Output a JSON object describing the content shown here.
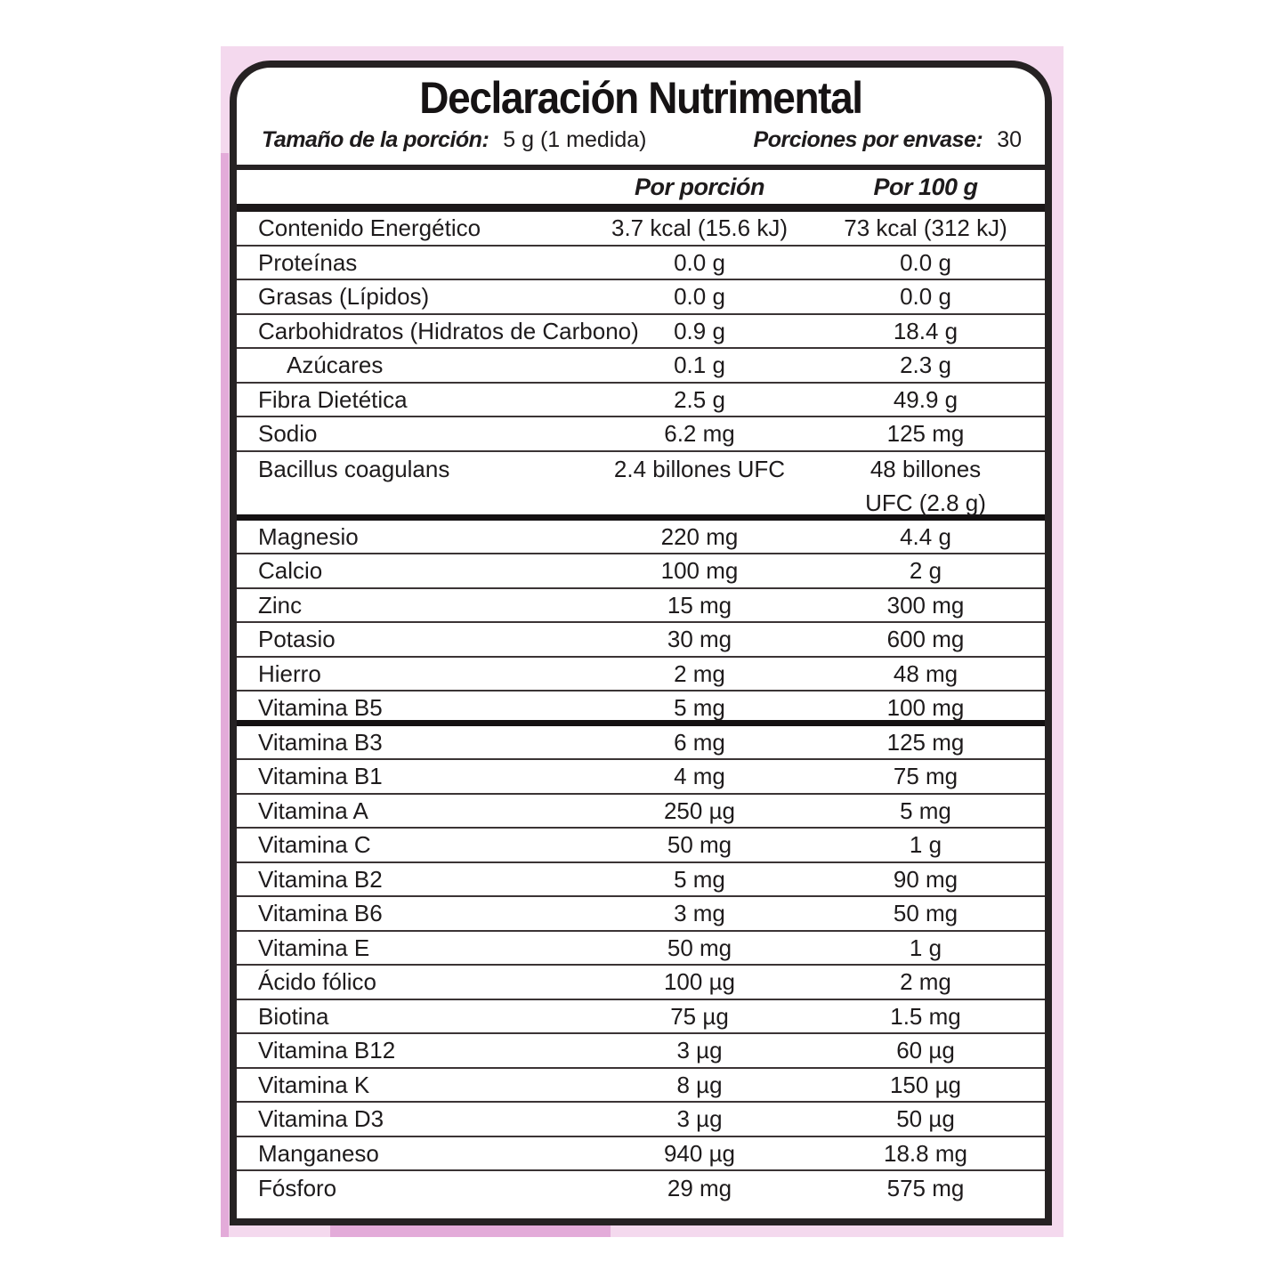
{
  "title": "Declaración Nutrimental",
  "serving": {
    "size_label": "Tamaño de la porción:",
    "size_value": "5 g (1 medida)",
    "per_container_label": "Porciones por envase:",
    "per_container_value": "30"
  },
  "columns": {
    "per_serving": "Por porción",
    "per_100g": "Por 100 g"
  },
  "colors": {
    "frame_pink_light": "#f4d9ee",
    "frame_pink_dark": "#e3abd9",
    "border_black": "#262223",
    "text": "#1e1b1c"
  },
  "table": {
    "rows": [
      {
        "label": "Contenido Energético",
        "per_serving": "3.7 kcal (15.6 kJ)",
        "per_100g": "73 kcal (312 kJ)"
      },
      {
        "label": "Proteínas",
        "per_serving": "0.0 g",
        "per_100g": "0.0 g"
      },
      {
        "label": "Grasas (Lípidos)",
        "per_serving": "0.0 g",
        "per_100g": "0.0 g"
      },
      {
        "label": "Carbohidratos (Hidratos de Carbono)",
        "per_serving": "0.9 g",
        "per_100g": "18.4 g"
      },
      {
        "label": "Azúcares",
        "indent": true,
        "per_serving": "0.1 g",
        "per_100g": "2.3 g"
      },
      {
        "label": "Fibra Dietética",
        "per_serving": "2.5 g",
        "per_100g": "49.9 g"
      },
      {
        "label": "Sodio",
        "per_serving": "6.2 mg",
        "per_100g": "125 mg"
      },
      {
        "label": "Bacillus coagulans",
        "per_serving": "2.4 billones UFC",
        "per_100g": [
          "48 billones",
          "UFC (2.8 g)"
        ],
        "tall": true,
        "thick_after": true
      },
      {
        "label": "Magnesio",
        "per_serving": "220 mg",
        "per_100g": "4.4 g"
      },
      {
        "label": "Calcio",
        "per_serving": "100 mg",
        "per_100g": "2 g"
      },
      {
        "label": "Zinc",
        "per_serving": "15 mg",
        "per_100g": "300 mg"
      },
      {
        "label": "Potasio",
        "per_serving": "30 mg",
        "per_100g": "600 mg"
      },
      {
        "label": "Hierro",
        "per_serving": "2 mg",
        "per_100g": "48 mg"
      },
      {
        "label": "Vitamina B5",
        "per_serving": "5 mg",
        "per_100g": "100 mg",
        "thick_after": true
      },
      {
        "label": "Vitamina B3",
        "per_serving": "6 mg",
        "per_100g": "125 mg"
      },
      {
        "label": "Vitamina B1",
        "per_serving": "4 mg",
        "per_100g": "75 mg"
      },
      {
        "label": "Vitamina A",
        "per_serving": "250 µg",
        "per_100g": "5 mg"
      },
      {
        "label": "Vitamina C",
        "per_serving": "50 mg",
        "per_100g": "1 g"
      },
      {
        "label": "Vitamina B2",
        "per_serving": "5 mg",
        "per_100g": "90 mg"
      },
      {
        "label": "Vitamina B6",
        "per_serving": "3 mg",
        "per_100g": "50 mg"
      },
      {
        "label": "Vitamina E",
        "per_serving": "50 mg",
        "per_100g": "1 g"
      },
      {
        "label": "Ácido fólico",
        "per_serving": "100 µg",
        "per_100g": "2 mg"
      },
      {
        "label": "Biotina",
        "per_serving": "75 µg",
        "per_100g": "1.5 mg"
      },
      {
        "label": "Vitamina B12",
        "per_serving": "3 µg",
        "per_100g": "60 µg"
      },
      {
        "label": "Vitamina K",
        "per_serving": "8 µg",
        "per_100g": "150 µg"
      },
      {
        "label": "Vitamina D3",
        "per_serving": "3 µg",
        "per_100g": "50 µg"
      },
      {
        "label": "Manganeso",
        "per_serving": "940 µg",
        "per_100g": "18.8 mg"
      },
      {
        "label": "Fósforo",
        "per_serving": "29 mg",
        "per_100g": "575 mg"
      }
    ]
  }
}
